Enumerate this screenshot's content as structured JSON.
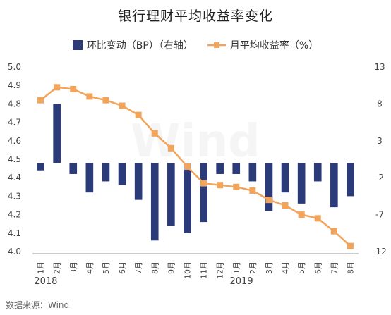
{
  "title": "银行理财平均收益率变化",
  "source": "数据来源：Wind",
  "watermark": "Wind",
  "chart_data": {
    "type": "bar+line",
    "categories": [
      "1月",
      "2月",
      "3月",
      "4月",
      "5月",
      "6月",
      "7月",
      "8月",
      "9月",
      "10月",
      "11月",
      "12月",
      "1月",
      "2月",
      "3月",
      "4月",
      "5月",
      "6月",
      "7月",
      "8月"
    ],
    "year_labels": [
      {
        "text": "2018",
        "start_index": 0
      },
      {
        "text": "2019",
        "start_index": 12
      }
    ],
    "series": [
      {
        "name": "环比变动（BP）（右轴）",
        "type": "bar",
        "axis": "right",
        "color": "#2b3a78",
        "values": [
          -1,
          8,
          -1.5,
          -4,
          -2.5,
          -3,
          -5,
          -10.5,
          -8.5,
          -9.5,
          -8,
          -1.5,
          -1.5,
          -2.5,
          -6.5,
          -4,
          -5.5,
          -2.5,
          -6,
          -4.5
        ]
      },
      {
        "name": "月平均收益率（%）",
        "type": "line",
        "axis": "left",
        "color": "#f2a45a",
        "values": [
          4.82,
          4.89,
          4.88,
          4.84,
          4.82,
          4.79,
          4.74,
          4.64,
          4.56,
          4.46,
          4.37,
          4.36,
          4.35,
          4.33,
          4.28,
          4.25,
          4.2,
          4.18,
          4.11,
          4.03
        ]
      }
    ],
    "y_left": {
      "min": 4.0,
      "max": 5.0,
      "step": 0.1,
      "ticks": [
        "4.0",
        "4.1",
        "4.2",
        "4.3",
        "4.4",
        "4.5",
        "4.6",
        "4.7",
        "4.8",
        "4.9",
        "5.0"
      ]
    },
    "y_right": {
      "min": -12,
      "max": 13,
      "ticks": [
        "-12",
        "-7",
        "-2",
        "3",
        "8",
        "13"
      ]
    },
    "grid": false,
    "legend_position": "top"
  }
}
